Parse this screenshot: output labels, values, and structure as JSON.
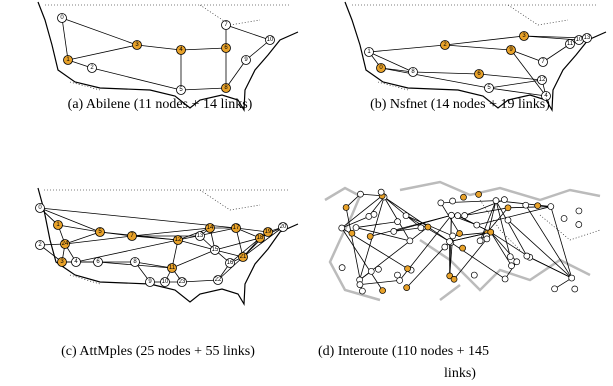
{
  "figures": [
    {
      "caption": "(a) Abilene (11 nodes + 14 links)",
      "nodes": [
        "0",
        "1",
        "2",
        "3",
        "4",
        "5",
        "6",
        "7",
        "8",
        "9",
        "10"
      ]
    },
    {
      "caption": "(b) Nsfnet (14 nodes + 19 links)",
      "nodes": [
        "0",
        "1",
        "2",
        "3",
        "4",
        "5",
        "6",
        "7",
        "8",
        "9",
        "10",
        "11",
        "12",
        "13"
      ]
    },
    {
      "caption": "(c) AttMples (25 nodes + 55 links)",
      "nodes": [
        "0",
        "1",
        "2",
        "3",
        "4",
        "5",
        "6",
        "7",
        "8",
        "9",
        "10",
        "11",
        "12",
        "13",
        "14",
        "15",
        "16",
        "17",
        "18",
        "19",
        "20",
        "21",
        "22",
        "23",
        "24"
      ]
    },
    {
      "caption": [
        "(d) Interoute (110 nodes + 145",
        "links)"
      ]
    }
  ]
}
